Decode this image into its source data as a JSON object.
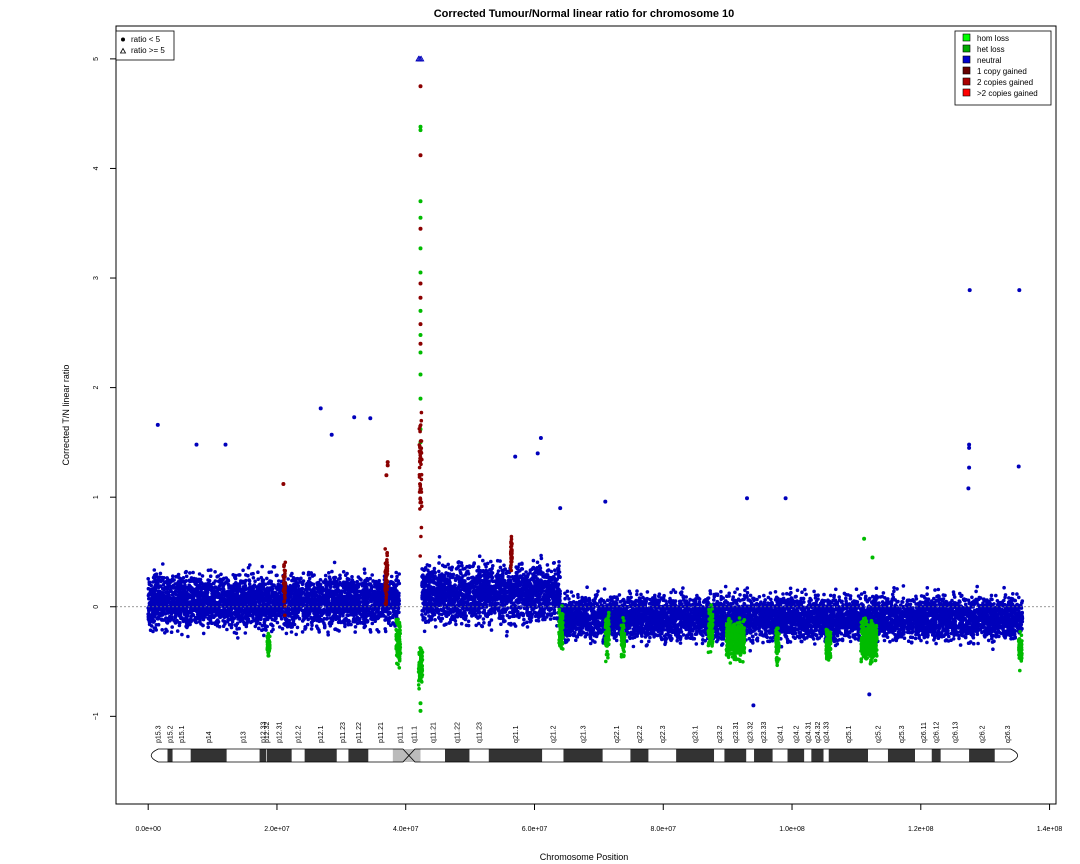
{
  "chart_data": {
    "type": "scatter",
    "title": "Corrected Tumour/Normal linear ratio for chromosome  10",
    "xlabel": "Chromosome Position",
    "ylabel": "Corrected T/N linear ratio",
    "xlim": [
      -5000000,
      141000000
    ],
    "ylim": [
      -1.8,
      5.3
    ],
    "x_ticks": [
      0,
      20000000,
      40000000,
      60000000,
      80000000,
      100000000,
      120000000,
      140000000
    ],
    "x_tick_labels": [
      "0.0e+00",
      "2.0e+07",
      "4.0e+07",
      "6.0e+07",
      "8.0e+07",
      "1.0e+08",
      "1.2e+08",
      "1.4e+08"
    ],
    "y_ticks": [
      -1,
      0,
      1,
      2,
      3,
      4,
      5
    ],
    "y_tick_labels": [
      "−1",
      "0",
      "1",
      "2",
      "3",
      "4",
      "5"
    ],
    "reference_line_y": 0,
    "grid": false,
    "legend_shape": {
      "placement": "top-left",
      "entries": [
        {
          "symbol": "dot",
          "label": "ratio < 5"
        },
        {
          "symbol": "triangle",
          "label": "ratio >= 5"
        }
      ]
    },
    "legend_copy": {
      "placement": "top-right",
      "entries": [
        {
          "label": "hom loss",
          "color": "#00ff00"
        },
        {
          "label": "het loss",
          "color": "#00aa00"
        },
        {
          "label": "neutral",
          "color": "#0000cc"
        },
        {
          "label": "1 copy gained",
          "color": "#660000"
        },
        {
          "label": "2 copies gained",
          "color": "#aa0000"
        },
        {
          "label": ">2 copies gained",
          "color": "#ff0000"
        }
      ]
    },
    "colors": {
      "neutral": "#0000bb",
      "loss": "#00bb00",
      "gain": "#8b0000",
      "axis": "#000000"
    },
    "series": [
      {
        "name": "neutral",
        "segments": [
          {
            "x_start": 0,
            "x_end": 39000000,
            "center": 0.05,
            "spread": 0.55
          },
          {
            "x_start": 42500000,
            "x_end": 64000000,
            "center": 0.12,
            "spread": 0.6
          },
          {
            "x_start": 64000000,
            "x_end": 135800000,
            "center": -0.1,
            "spread": 0.45
          }
        ],
        "outliers": [
          {
            "x": 1500000,
            "y": 1.66
          },
          {
            "x": 7500000,
            "y": 1.48
          },
          {
            "x": 12000000,
            "y": 1.48
          },
          {
            "x": 26800000,
            "y": 1.81
          },
          {
            "x": 28500000,
            "y": 1.57
          },
          {
            "x": 32000000,
            "y": 1.73
          },
          {
            "x": 34500000,
            "y": 1.72
          },
          {
            "x": 61000000,
            "y": 1.54
          },
          {
            "x": 60500000,
            "y": 1.4
          },
          {
            "x": 57000000,
            "y": 1.37
          },
          {
            "x": 127600000,
            "y": 2.89
          },
          {
            "x": 135300000,
            "y": 2.89
          },
          {
            "x": 127500000,
            "y": 1.48
          },
          {
            "x": 127500000,
            "y": 1.45
          },
          {
            "x": 127500000,
            "y": 1.27
          },
          {
            "x": 127400000,
            "y": 1.08
          },
          {
            "x": 135200000,
            "y": 1.28
          },
          {
            "x": 99000000,
            "y": 0.99
          },
          {
            "x": 93000000,
            "y": 0.99
          },
          {
            "x": 71000000,
            "y": 0.96
          },
          {
            "x": 64000000,
            "y": 0.9
          },
          {
            "x": 94000000,
            "y": -0.9
          },
          {
            "x": 112000000,
            "y": -0.8
          }
        ]
      },
      {
        "name": "het loss",
        "segments": [
          {
            "x_start": 18500000,
            "x_end": 18900000,
            "center": -0.35,
            "spread": 0.25
          },
          {
            "x_start": 38500000,
            "x_end": 39200000,
            "center": -0.3,
            "spread": 0.5
          },
          {
            "x_start": 42000000,
            "x_end": 42600000,
            "center": -0.55,
            "spread": 0.4
          },
          {
            "x_start": 63800000,
            "x_end": 64400000,
            "center": -0.2,
            "spread": 0.45
          },
          {
            "x_start": 71000000,
            "x_end": 71600000,
            "center": -0.25,
            "spread": 0.45
          },
          {
            "x_start": 73500000,
            "x_end": 74000000,
            "center": -0.3,
            "spread": 0.35
          },
          {
            "x_start": 87000000,
            "x_end": 87700000,
            "center": -0.2,
            "spread": 0.45
          },
          {
            "x_start": 89800000,
            "x_end": 92600000,
            "center": -0.3,
            "spread": 0.4
          },
          {
            "x_start": 97500000,
            "x_end": 98000000,
            "center": -0.35,
            "spread": 0.35
          },
          {
            "x_start": 105300000,
            "x_end": 106000000,
            "center": -0.35,
            "spread": 0.35
          },
          {
            "x_start": 110700000,
            "x_end": 113200000,
            "center": -0.3,
            "spread": 0.4
          },
          {
            "x_start": 135200000,
            "x_end": 135700000,
            "center": -0.4,
            "spread": 0.3
          }
        ],
        "outliers": [
          {
            "x": 42300000,
            "y": 4.38
          },
          {
            "x": 42300000,
            "y": 4.35
          },
          {
            "x": 42300000,
            "y": 3.7
          },
          {
            "x": 42300000,
            "y": 3.55
          },
          {
            "x": 42300000,
            "y": 3.27
          },
          {
            "x": 42300000,
            "y": 3.05
          },
          {
            "x": 42300000,
            "y": 2.7
          },
          {
            "x": 42300000,
            "y": 2.48
          },
          {
            "x": 42300000,
            "y": 2.32
          },
          {
            "x": 42300000,
            "y": 2.12
          },
          {
            "x": 42300000,
            "y": 1.9
          },
          {
            "x": 42300000,
            "y": 1.62
          },
          {
            "x": 42300000,
            "y": 1.5
          },
          {
            "x": 42300000,
            "y": -0.95
          },
          {
            "x": 42300000,
            "y": -0.88
          },
          {
            "x": 111200000,
            "y": 0.62
          },
          {
            "x": 112500000,
            "y": 0.45
          }
        ]
      },
      {
        "name": "1 copy gained",
        "segments": [
          {
            "x_start": 21000000,
            "x_end": 21300000,
            "center": 0.2,
            "spread": 0.5
          },
          {
            "x_start": 36800000,
            "x_end": 37200000,
            "center": 0.25,
            "spread": 0.6
          },
          {
            "x_start": 42100000,
            "x_end": 42500000,
            "center": 1.2,
            "spread": 1.6
          },
          {
            "x_start": 56300000,
            "x_end": 56500000,
            "center": 0.5,
            "spread": 0.4
          }
        ],
        "outliers": [
          {
            "x": 42300000,
            "y": 4.75
          },
          {
            "x": 42300000,
            "y": 4.12
          },
          {
            "x": 42300000,
            "y": 3.45
          },
          {
            "x": 42300000,
            "y": 2.95
          },
          {
            "x": 42300000,
            "y": 2.82
          },
          {
            "x": 42300000,
            "y": 2.58
          },
          {
            "x": 42300000,
            "y": 2.4
          },
          {
            "x": 37200000,
            "y": 1.32
          },
          {
            "x": 37200000,
            "y": 1.29
          },
          {
            "x": 37000000,
            "y": 1.2
          },
          {
            "x": 21000000,
            "y": 1.12
          }
        ]
      },
      {
        "name": "ratio >= 5",
        "outliers": [
          {
            "x": 42000000,
            "y": 5.0
          },
          {
            "x": 42200000,
            "y": 5.0
          },
          {
            "x": 42400000,
            "y": 5.0
          }
        ]
      }
    ],
    "ideogram": {
      "centromere": 40500000,
      "bands": [
        {
          "name": "p15.3",
          "start": 0,
          "end": 3000000,
          "stain": "gneg"
        },
        {
          "name": "p15.2",
          "start": 3000000,
          "end": 3800000,
          "stain": "gpos"
        },
        {
          "name": "p15.1",
          "start": 3800000,
          "end": 6600000,
          "stain": "gneg"
        },
        {
          "name": "p14",
          "start": 6600000,
          "end": 12200000,
          "stain": "gpos"
        },
        {
          "name": "p13",
          "start": 12200000,
          "end": 17300000,
          "stain": "gneg"
        },
        {
          "name": "p12.33",
          "start": 17300000,
          "end": 18300000,
          "stain": "gpos"
        },
        {
          "name": "p12.32",
          "start": 18300000,
          "end": 18400000,
          "stain": "gneg"
        },
        {
          "name": "p12.31",
          "start": 18400000,
          "end": 22300000,
          "stain": "gpos"
        },
        {
          "name": "p12.2",
          "start": 22300000,
          "end": 24300000,
          "stain": "gneg"
        },
        {
          "name": "p12.1",
          "start": 24300000,
          "end": 29300000,
          "stain": "gpos"
        },
        {
          "name": "p11.23",
          "start": 29300000,
          "end": 31100000,
          "stain": "gneg"
        },
        {
          "name": "p11.22",
          "start": 31100000,
          "end": 34200000,
          "stain": "gpos"
        },
        {
          "name": "p11.21",
          "start": 34200000,
          "end": 38000000,
          "stain": "gneg"
        },
        {
          "name": "p11.1",
          "start": 38000000,
          "end": 40200000,
          "stain": "acen"
        },
        {
          "name": "q11.1",
          "start": 40200000,
          "end": 42300000,
          "stain": "acen"
        },
        {
          "name": "q11.21",
          "start": 42300000,
          "end": 46100000,
          "stain": "gneg"
        },
        {
          "name": "q11.22",
          "start": 46100000,
          "end": 49900000,
          "stain": "gpos"
        },
        {
          "name": "q11.23",
          "start": 49900000,
          "end": 52900000,
          "stain": "gneg"
        },
        {
          "name": "q21.1",
          "start": 52900000,
          "end": 61200000,
          "stain": "gpos"
        },
        {
          "name": "q21.2",
          "start": 61200000,
          "end": 64500000,
          "stain": "gneg"
        },
        {
          "name": "q21.3",
          "start": 64500000,
          "end": 70600000,
          "stain": "gpos"
        },
        {
          "name": "q22.1",
          "start": 70600000,
          "end": 74900000,
          "stain": "gneg"
        },
        {
          "name": "q22.2",
          "start": 74900000,
          "end": 77700000,
          "stain": "gpos"
        },
        {
          "name": "q22.3",
          "start": 77700000,
          "end": 82000000,
          "stain": "gneg"
        },
        {
          "name": "q23.1",
          "start": 82000000,
          "end": 87900000,
          "stain": "gpos"
        },
        {
          "name": "q23.2",
          "start": 87900000,
          "end": 89500000,
          "stain": "gneg"
        },
        {
          "name": "q23.31",
          "start": 89500000,
          "end": 92900000,
          "stain": "gpos"
        },
        {
          "name": "q23.32",
          "start": 92900000,
          "end": 94100000,
          "stain": "gneg"
        },
        {
          "name": "q23.33",
          "start": 94100000,
          "end": 97000000,
          "stain": "gpos"
        },
        {
          "name": "q24.1",
          "start": 97000000,
          "end": 99300000,
          "stain": "gneg"
        },
        {
          "name": "q24.2",
          "start": 99300000,
          "end": 101900000,
          "stain": "gpos"
        },
        {
          "name": "q24.31",
          "start": 101900000,
          "end": 103000000,
          "stain": "gneg"
        },
        {
          "name": "q24.32",
          "start": 103000000,
          "end": 104900000,
          "stain": "gpos"
        },
        {
          "name": "q24.33",
          "start": 104900000,
          "end": 105700000,
          "stain": "gneg"
        },
        {
          "name": "q25.1",
          "start": 105700000,
          "end": 111800000,
          "stain": "gpos"
        },
        {
          "name": "q25.2",
          "start": 111800000,
          "end": 114900000,
          "stain": "gneg"
        },
        {
          "name": "q25.3",
          "start": 114900000,
          "end": 119100000,
          "stain": "gpos"
        },
        {
          "name": "q26.11",
          "start": 119100000,
          "end": 121700000,
          "stain": "gneg"
        },
        {
          "name": "q26.12",
          "start": 121700000,
          "end": 123100000,
          "stain": "gpos"
        },
        {
          "name": "q26.13",
          "start": 123100000,
          "end": 127500000,
          "stain": "gneg"
        },
        {
          "name": "q26.2",
          "start": 127500000,
          "end": 131500000,
          "stain": "gpos"
        },
        {
          "name": "q26.3",
          "start": 131500000,
          "end": 135500000,
          "stain": "gneg"
        }
      ]
    }
  }
}
